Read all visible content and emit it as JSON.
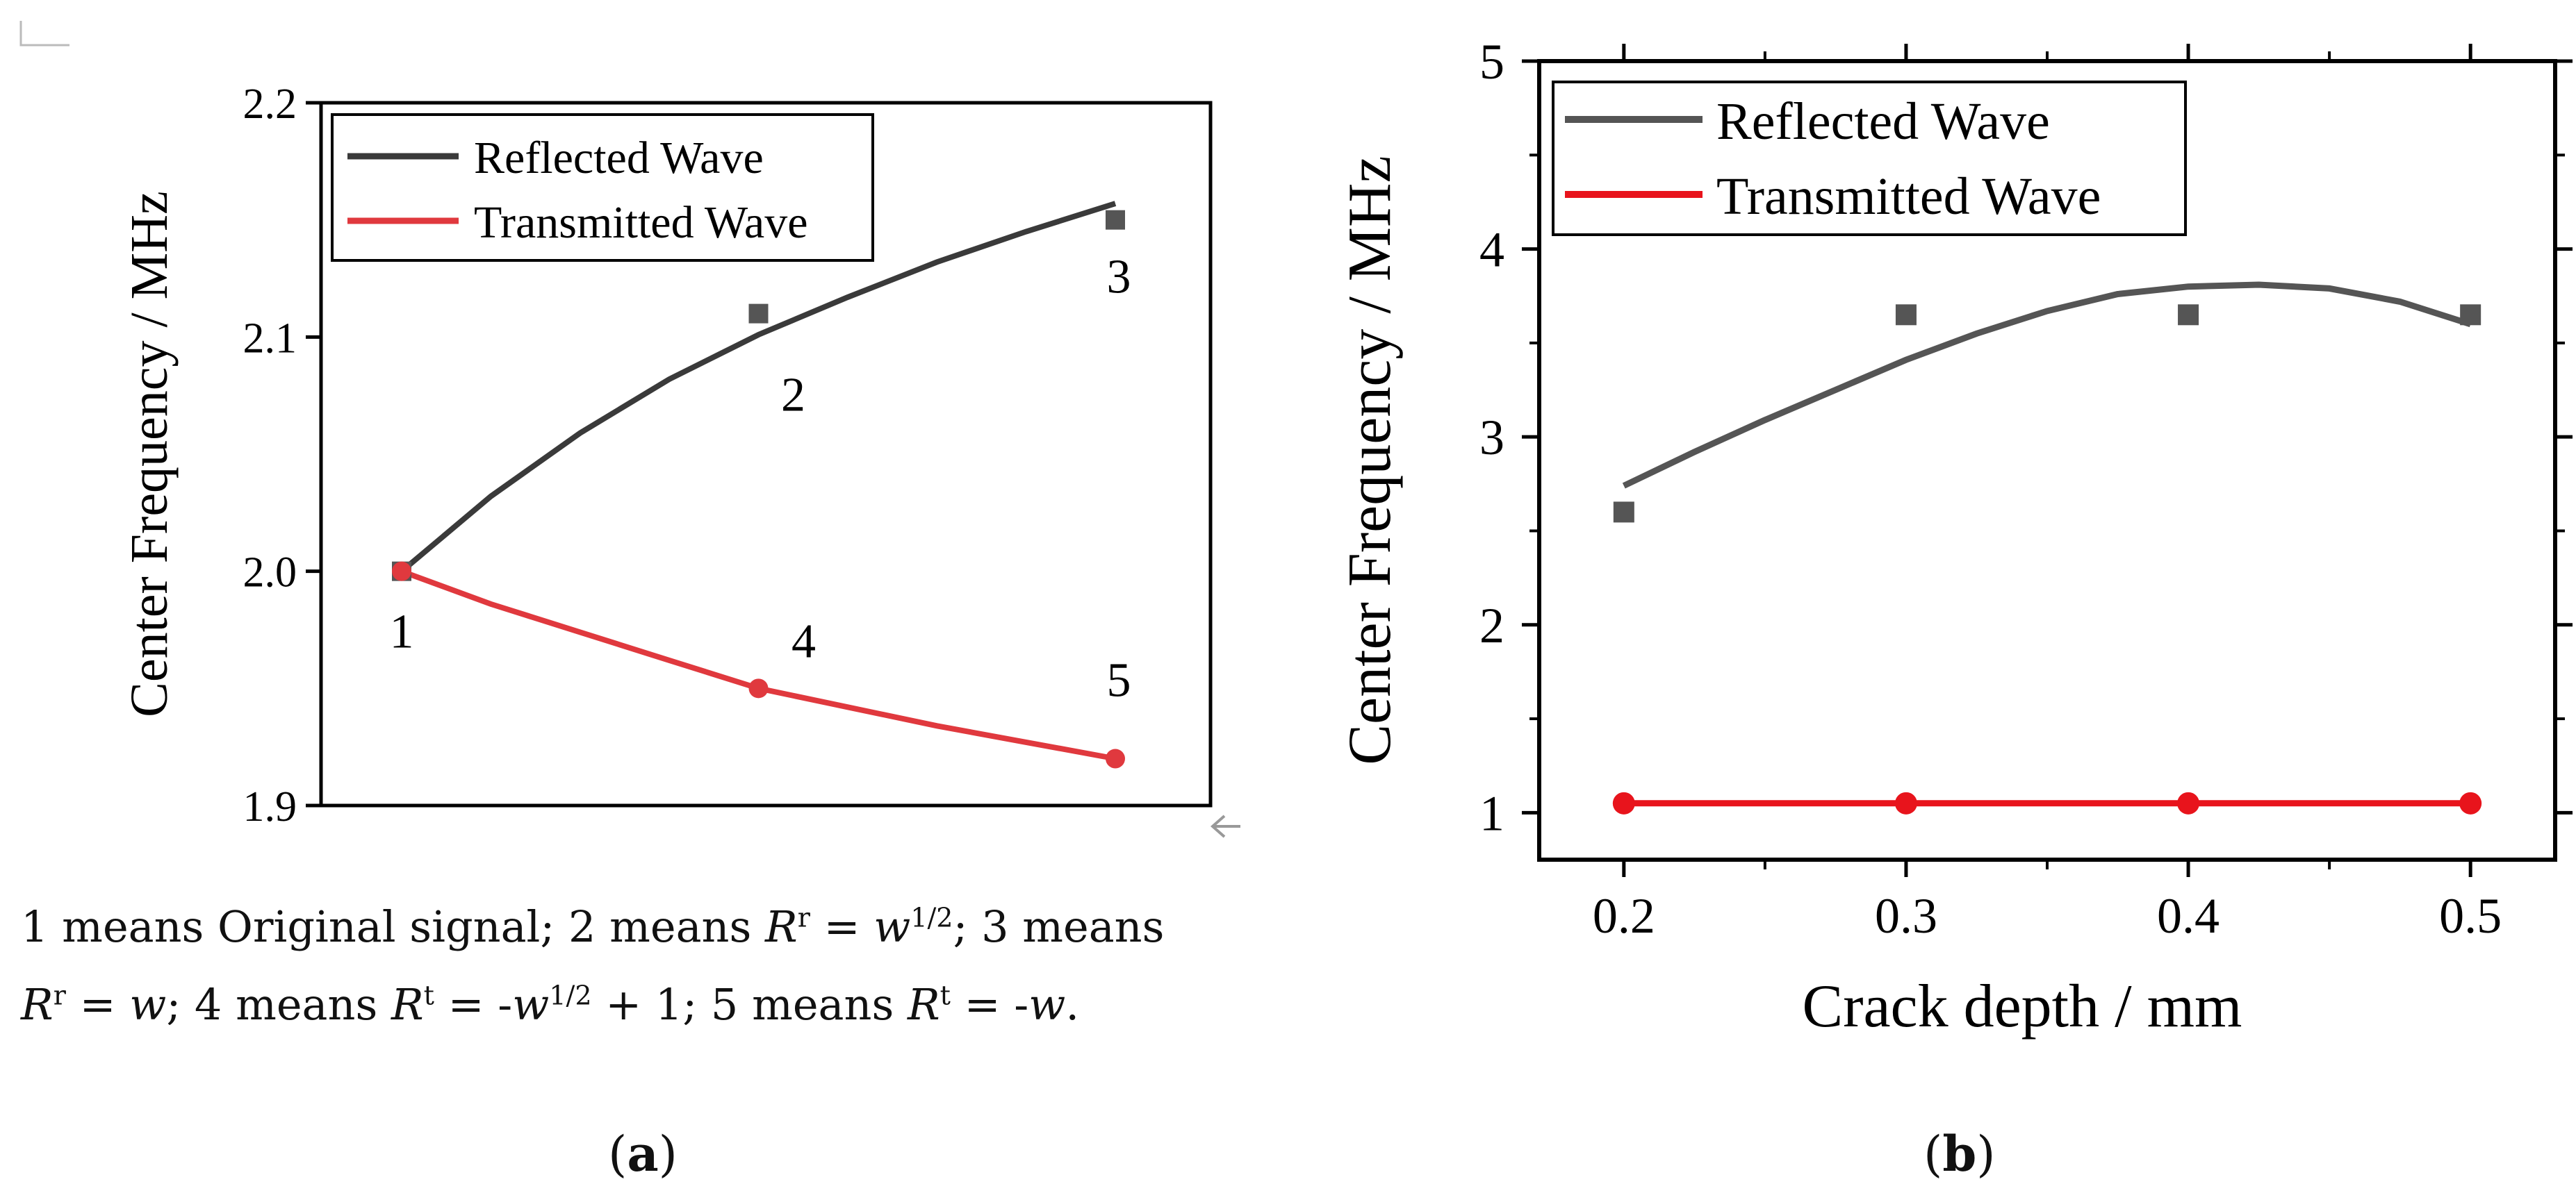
{
  "chart_data": [
    {
      "id": "a",
      "type": "line",
      "title": "",
      "xlabel": "",
      "ylabel": "Center Frequency / MHz",
      "ylim": [
        1.9,
        2.2
      ],
      "yticks": [
        "1.9",
        "2.0",
        "2.1",
        "2.2"
      ],
      "legend": {
        "position": "top-left",
        "entries": [
          "Reflected Wave",
          "Transmitted Wave"
        ]
      },
      "series": [
        {
          "name": "Reflected Wave",
          "color": "#3a3a3a",
          "marker": "square",
          "points": [
            {
              "x": 0,
              "y": 2.0
            },
            {
              "x": 1,
              "y": 2.11
            },
            {
              "x": 2,
              "y": 2.15
            }
          ],
          "fit": [
            {
              "x": 0,
              "y": 2.0
            },
            {
              "x": 0.25,
              "y": 2.032
            },
            {
              "x": 0.5,
              "y": 2.059
            },
            {
              "x": 0.75,
              "y": 2.082
            },
            {
              "x": 1,
              "y": 2.101
            },
            {
              "x": 1.25,
              "y": 2.117
            },
            {
              "x": 1.5,
              "y": 2.132
            },
            {
              "x": 1.75,
              "y": 2.145
            },
            {
              "x": 2,
              "y": 2.157
            }
          ]
        },
        {
          "name": "Transmitted Wave",
          "color": "#e0393e",
          "marker": "circle",
          "points": [
            {
              "x": 0,
              "y": 2.0
            },
            {
              "x": 1,
              "y": 1.95
            },
            {
              "x": 2,
              "y": 1.92
            }
          ],
          "fit": [
            {
              "x": 0,
              "y": 2.0
            },
            {
              "x": 0.25,
              "y": 1.986
            },
            {
              "x": 0.5,
              "y": 1.974
            },
            {
              "x": 0.75,
              "y": 1.962
            },
            {
              "x": 1,
              "y": 1.95
            },
            {
              "x": 1.25,
              "y": 1.942
            },
            {
              "x": 1.5,
              "y": 1.934
            },
            {
              "x": 1.75,
              "y": 1.927
            },
            {
              "x": 2,
              "y": 1.92
            }
          ]
        }
      ],
      "point_labels": [
        {
          "text": "1",
          "x": 0,
          "y": 2.0
        },
        {
          "text": "2",
          "x": 1,
          "y": 2.11
        },
        {
          "text": "3",
          "x": 2,
          "y": 2.15
        },
        {
          "text": "4",
          "x": 1,
          "y": 1.95
        },
        {
          "text": "5",
          "x": 2,
          "y": 1.92
        }
      ],
      "caption": {
        "line1": [
          "1 means Original signal; 2 means ",
          "R",
          "r",
          " = ",
          "w",
          "1/2",
          "; 3 means"
        ],
        "line2": [
          "R",
          "r",
          " = ",
          "w",
          "; 4 means ",
          "R",
          "t",
          " = -",
          "w",
          "1/2",
          " + 1; 5 means ",
          "R",
          "t",
          " = -",
          "w",
          "."
        ]
      },
      "panel_label": [
        "(",
        "a",
        ")"
      ]
    },
    {
      "id": "b",
      "type": "line",
      "title": "",
      "xlabel": "Crack depth / mm",
      "ylabel": "Center Frequency / MHz",
      "xlim": [
        0.17,
        0.53
      ],
      "ylim": [
        0.75,
        5
      ],
      "xticks": [
        "0.2",
        "0.3",
        "0.4",
        "0.5"
      ],
      "yticks": [
        "1",
        "2",
        "3",
        "4",
        "5"
      ],
      "legend": {
        "position": "top-left",
        "entries": [
          "Reflected Wave",
          "Transmitted Wave"
        ]
      },
      "series": [
        {
          "name": "Reflected Wave",
          "color": "#555555",
          "marker": "square",
          "points": [
            {
              "x": 0.2,
              "y": 2.6
            },
            {
              "x": 0.3,
              "y": 3.65
            },
            {
              "x": 0.4,
              "y": 3.65
            },
            {
              "x": 0.5,
              "y": 3.65
            }
          ],
          "fit": [
            {
              "x": 0.2,
              "y": 2.74
            },
            {
              "x": 0.225,
              "y": 2.92
            },
            {
              "x": 0.25,
              "y": 3.09
            },
            {
              "x": 0.275,
              "y": 3.25
            },
            {
              "x": 0.3,
              "y": 3.41
            },
            {
              "x": 0.325,
              "y": 3.55
            },
            {
              "x": 0.35,
              "y": 3.67
            },
            {
              "x": 0.375,
              "y": 3.76
            },
            {
              "x": 0.4,
              "y": 3.8
            },
            {
              "x": 0.425,
              "y": 3.81
            },
            {
              "x": 0.45,
              "y": 3.79
            },
            {
              "x": 0.475,
              "y": 3.72
            },
            {
              "x": 0.5,
              "y": 3.6
            }
          ]
        },
        {
          "name": "Transmitted Wave",
          "color": "#e8141c",
          "marker": "circle",
          "points": [
            {
              "x": 0.2,
              "y": 1.05
            },
            {
              "x": 0.3,
              "y": 1.05
            },
            {
              "x": 0.4,
              "y": 1.05
            },
            {
              "x": 0.5,
              "y": 1.05
            }
          ],
          "fit": [
            {
              "x": 0.2,
              "y": 1.05
            },
            {
              "x": 0.5,
              "y": 1.05
            }
          ]
        }
      ],
      "panel_label": [
        "(",
        "b",
        ")"
      ]
    }
  ]
}
